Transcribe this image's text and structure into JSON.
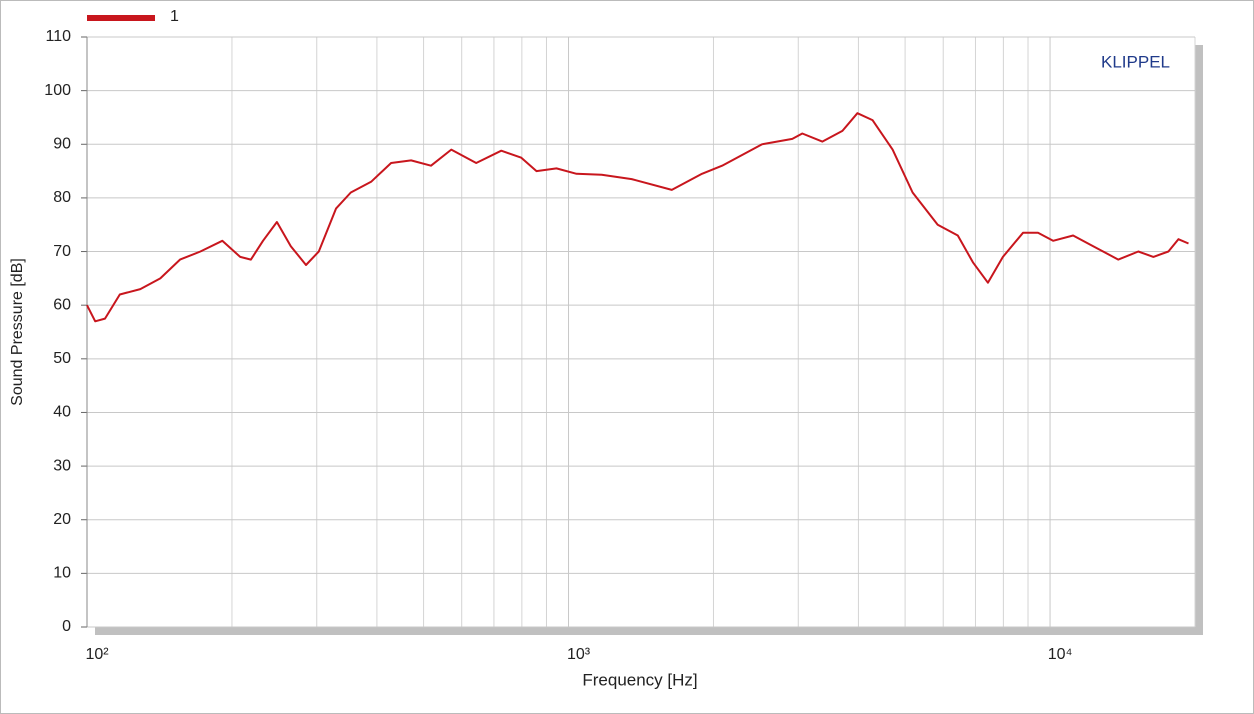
{
  "chart_data": {
    "type": "line",
    "title_annotation": "KLIPPEL",
    "xlabel": "Frequency [Hz]",
    "ylabel": "Sound Pressure [dB]",
    "log_x": true,
    "grid": true,
    "legend": "top-left",
    "xlim": [
      100,
      20000
    ],
    "ylim": [
      0,
      110
    ],
    "xticks": [
      {
        "value": 100,
        "label": "10²"
      },
      {
        "value": 1000,
        "label": "10³"
      },
      {
        "value": 10000,
        "label": "10⁴"
      }
    ],
    "minor_xticks": [
      200,
      300,
      400,
      500,
      600,
      700,
      800,
      900,
      2000,
      3000,
      4000,
      5000,
      6000,
      7000,
      8000,
      9000,
      20000
    ],
    "yticks": [
      0,
      10,
      20,
      30,
      40,
      50,
      60,
      70,
      80,
      90,
      100,
      110
    ],
    "x": [
      100,
      104,
      109,
      117,
      129,
      142,
      156,
      172,
      191,
      208,
      219,
      232,
      248,
      265,
      285,
      303,
      329,
      353,
      389,
      428,
      471,
      518,
      571,
      643,
      725,
      798,
      858,
      944,
      1039,
      1172,
      1353,
      1639,
      1893,
      2084,
      2524,
      2915,
      3058,
      3366,
      3705,
      3981,
      4279,
      4709,
      5183,
      5843,
      6433,
      6915,
      7428,
      7982,
      8787,
      9441,
      10145,
      11166,
      12290,
      13857,
      15253,
      16391,
      17612,
      18478,
      19387
    ],
    "series": [
      {
        "name": "1",
        "color": "#c8161d",
        "values": [
          60,
          57,
          57.5,
          62,
          63,
          65,
          68.5,
          70,
          72,
          69,
          68.5,
          72,
          75.5,
          71,
          67.5,
          70,
          78,
          81,
          83,
          86.5,
          87,
          86,
          89,
          86.5,
          88.8,
          87.5,
          85,
          85.5,
          84.5,
          84.3,
          83.5,
          81.5,
          84.5,
          86,
          90,
          91,
          92,
          90.5,
          92.5,
          95.8,
          94.5,
          89,
          81,
          75,
          73,
          68,
          64.2,
          69,
          73.5,
          73.5,
          72,
          73,
          71,
          68.5,
          70,
          69,
          70,
          72.3,
          71.5
        ]
      }
    ]
  }
}
